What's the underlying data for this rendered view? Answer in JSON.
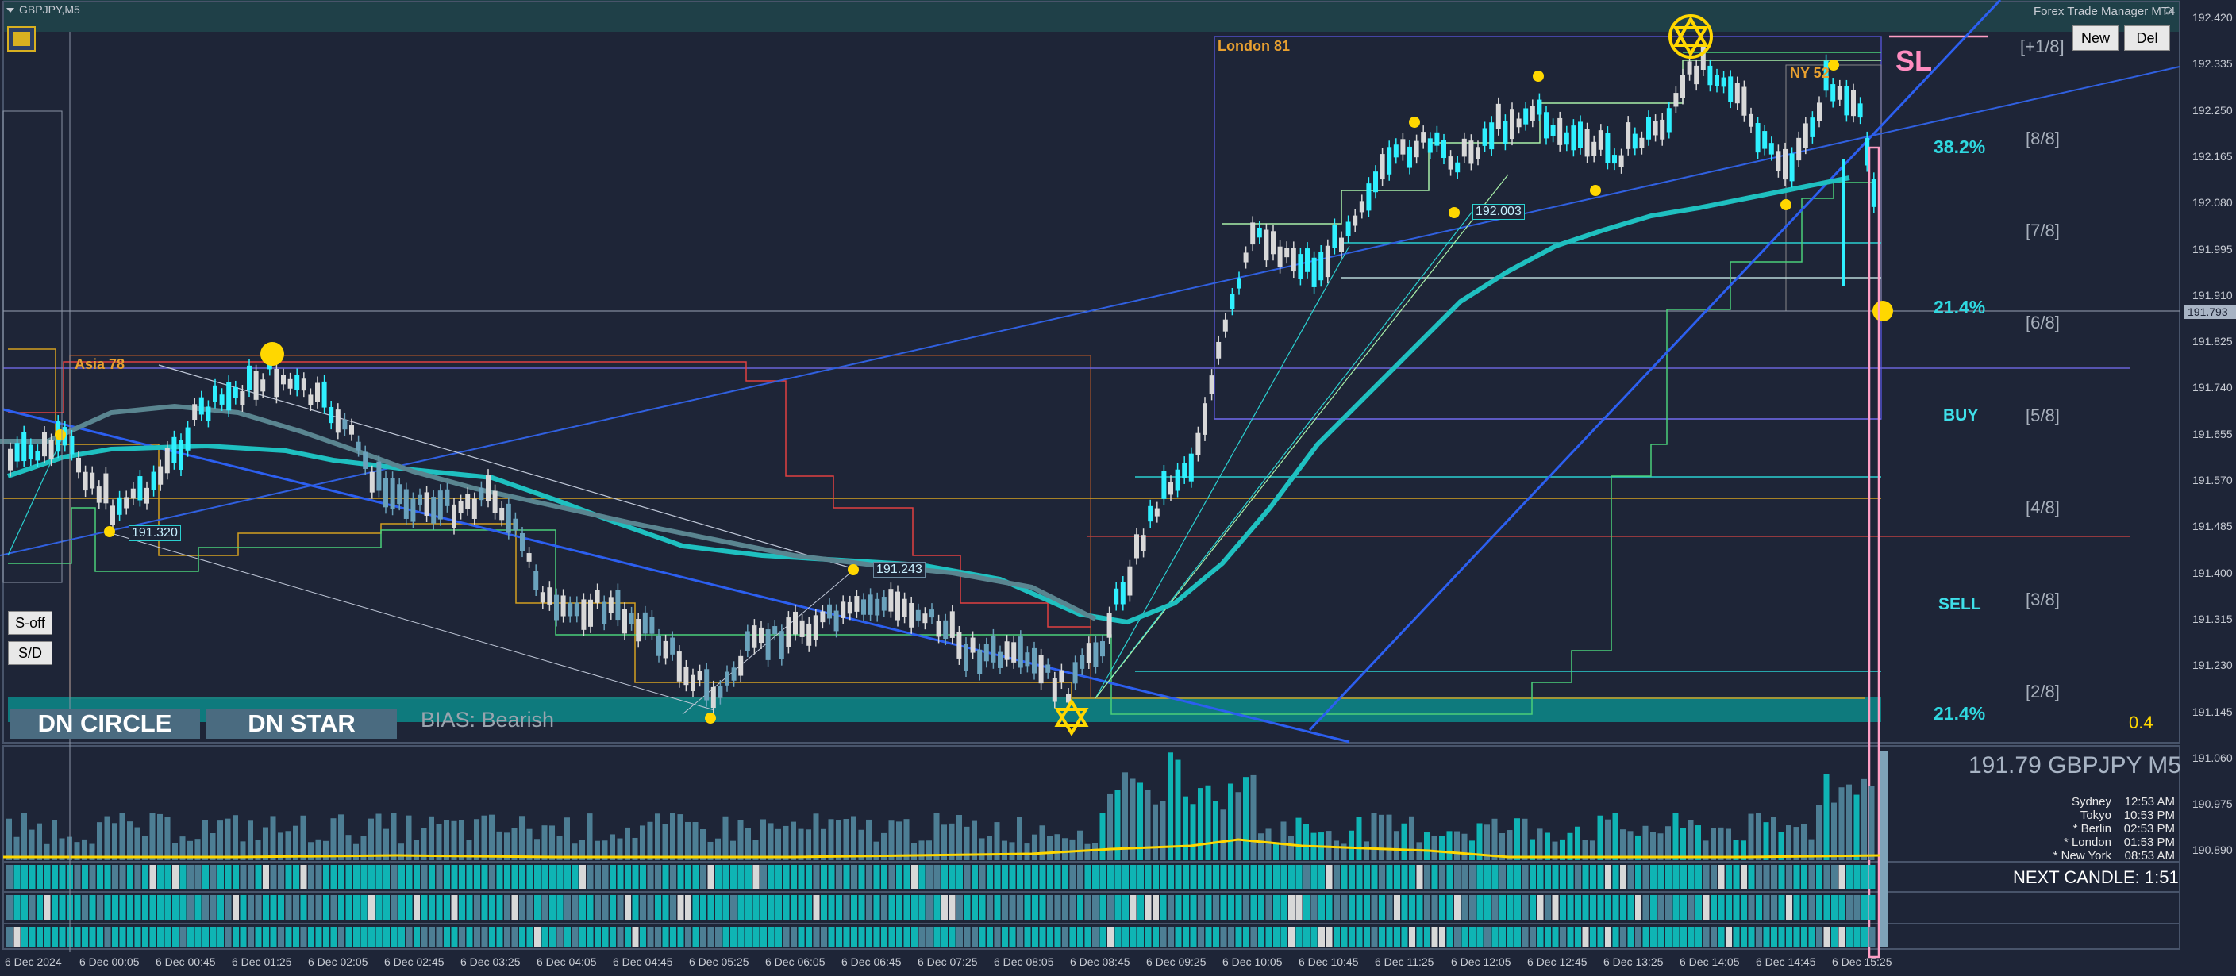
{
  "window": {
    "symbol_title": "GBPJPY,M5",
    "ea_name": "Forex Trade Manager MT4",
    "ea_icon": "smiley-icon"
  },
  "toolbar": {
    "new_label": "New",
    "del_label": "Del",
    "s_off_label": "S-off",
    "sd_label": "S/D"
  },
  "panels": {
    "dn_circle": "DN CIRCLE",
    "dn_star": "DN STAR",
    "bias": "BIAS: Bearish"
  },
  "sessions": {
    "asia": "Asia 78",
    "london": "London 81",
    "ny": "NY 52"
  },
  "labels": {
    "sl": "SL",
    "price_191320": "191.320",
    "price_191243": "191.243",
    "price_192003": "192.003",
    "value_04": "0.4"
  },
  "murrey": [
    "[+1/8]",
    "[8/8]",
    "[7/8]",
    "[6/8]",
    "[5/8]",
    "[4/8]",
    "[3/8]",
    "[2/8]"
  ],
  "fib": {
    "f382": "38.2%",
    "f214_top": "21.4%",
    "f214_bottom": "21.4%"
  },
  "signals": {
    "buy": "BUY",
    "sell": "SELL"
  },
  "price_axis": {
    "ticks": [
      "192.420",
      "192.335",
      "192.250",
      "192.165",
      "192.080",
      "191.995",
      "191.910",
      "191.825",
      "191.740",
      "191.655",
      "191.570",
      "191.485",
      "191.400",
      "191.315",
      "191.230",
      "191.145",
      "191.060",
      "190.975",
      "190.890"
    ],
    "current": "191.793",
    "current_color": "#a8b4c4"
  },
  "time_axis": {
    "ticks": [
      "6 Dec 2024",
      "6 Dec 00:05",
      "6 Dec 00:45",
      "6 Dec 01:25",
      "6 Dec 02:05",
      "6 Dec 02:45",
      "6 Dec 03:25",
      "6 Dec 04:05",
      "6 Dec 04:45",
      "6 Dec 05:25",
      "6 Dec 06:05",
      "6 Dec 06:45",
      "6 Dec 07:25",
      "6 Dec 08:05",
      "6 Dec 08:45",
      "6 Dec 09:25",
      "6 Dec 10:05",
      "6 Dec 10:45",
      "6 Dec 11:25",
      "6 Dec 12:05",
      "6 Dec 12:45",
      "6 Dec 13:25",
      "6 Dec 14:05",
      "6 Dec 14:45",
      "6 Dec 15:25"
    ]
  },
  "info": {
    "price_symbol": "191.79 GBPJPY M5",
    "next_candle": "NEXT CANDLE: 1:51",
    "clocks": [
      {
        "city": "Sydney",
        "time": "12:53 AM"
      },
      {
        "city": "Tokyo",
        "time": "10:53 PM"
      },
      {
        "city": "* Berlin",
        "time": "02:53 PM"
      },
      {
        "city": "* London",
        "time": "01:53 PM"
      },
      {
        "city": "* New York",
        "time": "08:53 AM"
      }
    ]
  },
  "colors": {
    "background": "#1e2537",
    "bull_candle": "#2ff0ff",
    "bear_candle": "#d8d8d8",
    "early_candle": "#6e9fb8",
    "accent_gold": "#ffd700",
    "trend_blue": "#2c5ff0",
    "sl_pink": "#ff9ec4",
    "teal": "#0fa6a6"
  }
}
